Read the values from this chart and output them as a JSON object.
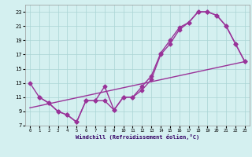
{
  "line1_x": [
    0,
    1,
    2,
    3,
    4,
    5,
    6,
    7,
    8,
    9,
    10,
    11,
    12,
    13,
    14,
    15,
    16,
    17,
    18,
    19,
    20,
    21,
    22,
    23
  ],
  "line1_y": [
    13,
    11,
    10.2,
    9.0,
    8.5,
    7.5,
    10.5,
    10.5,
    12.5,
    9.2,
    11.0,
    11.0,
    12.0,
    13.5,
    17.0,
    18.5,
    20.5,
    21.5,
    23.0,
    23.0,
    22.5,
    21.0,
    18.5,
    16.0
  ],
  "line2_x": [
    0,
    23
  ],
  "line2_y": [
    9.5,
    16.0
  ],
  "line3_x": [
    1,
    2,
    3,
    4,
    5,
    6,
    7,
    8,
    9,
    10,
    11,
    12,
    13,
    14,
    15,
    16,
    17,
    18,
    19,
    20,
    21,
    22,
    23
  ],
  "line3_y": [
    11.0,
    10.2,
    9.0,
    8.5,
    7.5,
    10.5,
    10.5,
    10.5,
    9.2,
    11.0,
    11.0,
    12.5,
    14.0,
    17.2,
    19.0,
    20.8,
    21.5,
    23.0,
    23.0,
    22.5,
    21.0,
    18.5,
    16.0
  ],
  "color": "#993399",
  "bg_color": "#d4f0f0",
  "grid_color": "#aad4d4",
  "xlabel": "Windchill (Refroidissement éolien,°C)",
  "xlim": [
    -0.5,
    23.5
  ],
  "ylim": [
    7,
    24
  ],
  "xticks": [
    0,
    1,
    2,
    3,
    4,
    5,
    6,
    7,
    8,
    9,
    10,
    11,
    12,
    13,
    14,
    15,
    16,
    17,
    18,
    19,
    20,
    21,
    22,
    23
  ],
  "yticks": [
    7,
    9,
    11,
    13,
    15,
    17,
    19,
    21,
    23
  ],
  "marker": "D",
  "markersize": 2.5,
  "linewidth": 1.0
}
